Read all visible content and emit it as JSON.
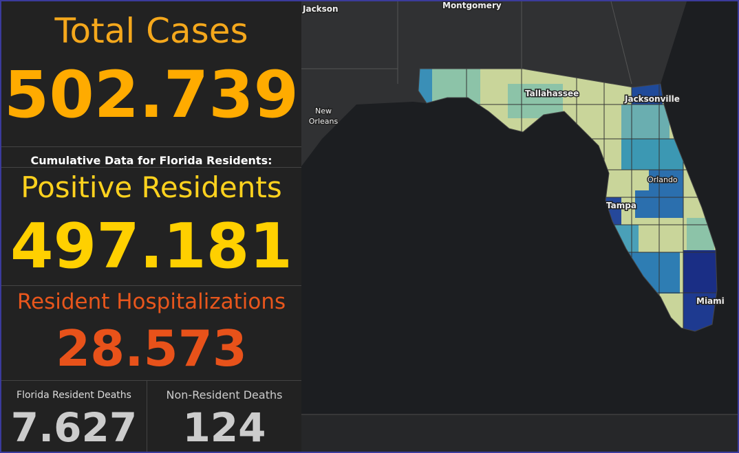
{
  "panels": {
    "total_cases": {
      "title": "Total Cases",
      "value": "502.739"
    },
    "subtitle": "Cumulative Data for Florida Residents:",
    "positive_residents": {
      "title": "Positive Residents",
      "value": "497.181"
    },
    "hospitalizations": {
      "title": "Resident Hospitalizations",
      "value": "28.573"
    },
    "resident_deaths": {
      "title": "Florida Resident Deaths",
      "value": "7.627"
    },
    "non_resident_deaths": {
      "title": "Non-Resident Deaths",
      "value": "124"
    }
  },
  "map": {
    "labels": [
      "Jackson",
      "Montgomery",
      "New",
      "Orleans",
      "Tallahassee",
      "Jacksonville",
      "Orlando",
      "Tampa",
      "Miami"
    ]
  }
}
